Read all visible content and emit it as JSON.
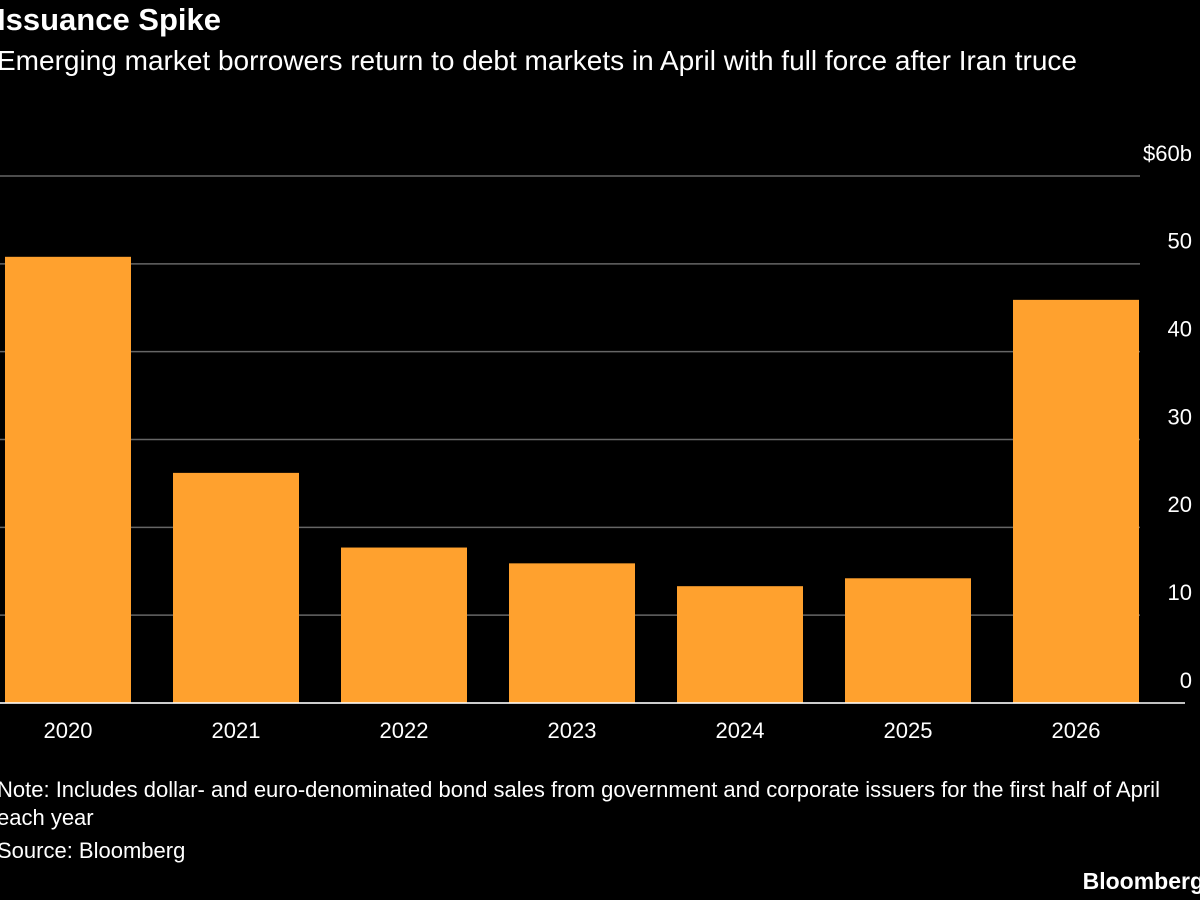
{
  "chart_data": {
    "type": "bar",
    "title": "Issuance Spike",
    "subtitle": "Emerging market borrowers return to debt markets in April with full force after Iran truce",
    "categories": [
      "2020",
      "2021",
      "2022",
      "2023",
      "2024",
      "2025",
      "2026"
    ],
    "values": [
      50.8,
      26.2,
      17.7,
      15.9,
      13.3,
      14.2,
      45.9
    ],
    "color": "#ffa12e",
    "ylim": [
      0,
      60
    ],
    "yticks": [
      0,
      10,
      20,
      30,
      40,
      50,
      {
        "value": 60,
        "label": "$60b"
      }
    ],
    "grid": true,
    "note": "Note: Includes dollar- and euro-denominated bond sales from government and corporate issuers for the first half of April each year",
    "source": "Source: Bloomberg",
    "brand": "Bloomberg"
  }
}
